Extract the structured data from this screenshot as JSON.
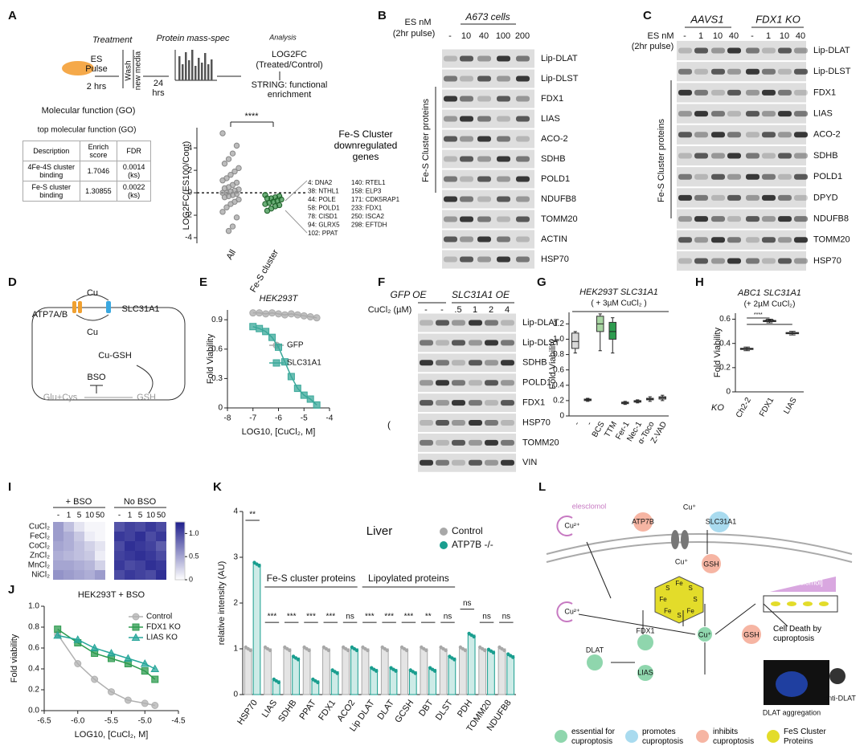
{
  "panels": {
    "A": {
      "letter": "A",
      "workflow": {
        "treatment": "Treatment",
        "es": "ES",
        "pulse": "Pulse",
        "hrs2": "2 hrs",
        "wash": "Wash",
        "new_media": "new media",
        "h24": "24",
        "hrs": "hrs",
        "massspec": "Protein mass-spec",
        "analysis": "Analysis",
        "log2fc": "LOG2FC",
        "ratio": "(Treated/Control)",
        "string1": "STRING: functional",
        "string2": "enrichment",
        "go": "Molecular function (GO)"
      },
      "table": {
        "title": "top molecular function (GO)",
        "header": [
          "Description",
          "Enrich score",
          "FDR"
        ],
        "rows": [
          [
            "4Fe-4S cluster binding",
            "1.7046",
            "0.0014 (ks)"
          ],
          [
            "Fe-S cluster binding",
            "1.30855",
            "0.0022 (ks)"
          ]
        ]
      },
      "plot": {
        "type": "strip",
        "ylabel": "LOG2FC(ES100/Cont)",
        "ylim": [
          -4.5,
          5.8
        ],
        "yticks": [
          -4,
          -2,
          0,
          2,
          4
        ],
        "categories": [
          "All",
          "Fe-S cluster"
        ],
        "groups": [
          {
            "color": "#a0a0a0",
            "values": [
              5.3,
              4.2,
              3.5,
              3.0,
              2.6,
              2.2,
              1.9,
              1.6,
              1.3,
              1.1,
              0.9,
              0.7,
              0.5,
              0.4,
              0.3,
              0.2,
              0.1,
              0,
              0,
              -0.1,
              -0.2,
              -0.3,
              -0.4,
              -0.6,
              -0.8,
              -1.0,
              -1.3,
              -1.7,
              -2.2,
              -3.0,
              -3.4
            ]
          },
          {
            "color": "#2e8b3e",
            "values": [
              -0.2,
              -0.3,
              -0.4,
              -0.5,
              -0.5,
              -0.6,
              -0.7,
              -0.8,
              -0.9,
              -1.0,
              -1.1,
              -1.2,
              -1.4,
              -1.6
            ]
          }
        ],
        "significance": "****",
        "genes_title": "Fe-S Cluster downregulated genes",
        "genes": [
          "4: DNA2",
          "38: NTHL1",
          "44: POLE",
          "58: POLD1",
          "78: CISD1",
          "94: GLRX5",
          "102: PPAT",
          "140: RTEL1",
          "158: ELP3",
          "171: CDK5RAP1",
          "233: FDX1",
          "250: ISCA2",
          "298: EFTDH"
        ]
      }
    },
    "B": {
      "letter": "B",
      "dose_label": "ES nM",
      "pulse": "(2hr pulse)",
      "cells": "A673 cells",
      "lanes": [
        "-",
        "10",
        "40",
        "100",
        "200"
      ],
      "rows": [
        "Lip-DLAT",
        "Lip-DLST",
        "FDX1",
        "LIAS",
        "ACO-2",
        "SDHB",
        "POLD1",
        "NDUFB8",
        "TOMM20",
        "ACTIN",
        "HSP70"
      ],
      "bracket": "Fe-S Cluster proteins"
    },
    "C": {
      "letter": "C",
      "dose_label": "ES nM",
      "pulse": "(2hr pulse)",
      "groups": [
        "AAVS1",
        "FDX1 KO"
      ],
      "lanes": [
        "-",
        "1",
        "10",
        "40",
        "-",
        "1",
        "10",
        "40"
      ],
      "rows": [
        "Lip-DLAT",
        "Lip-DLST",
        "FDX1",
        "LIAS",
        "ACO-2",
        "SDHB",
        "POLD1",
        "DPYD",
        "NDUFB8",
        "TOMM20",
        "HSP70"
      ],
      "bracket": "Fe-S Cluster proteins"
    },
    "D": {
      "letter": "D",
      "labels": {
        "atp7": "ATP7A/B",
        "cu_top": "Cu",
        "slc": "SLC31A1",
        "cu_bottom": "Cu",
        "cugsh": "Cu-GSH",
        "bso": "BSO",
        "glucys": "Glu+Cys",
        "gsh": "GSH"
      }
    },
    "E": {
      "letter": "E",
      "chart": {
        "type": "line",
        "title": "HEK293T",
        "xlabel": "LOG10, [CuCl₂, M]",
        "ylabel": "Fold Viability",
        "x": [
          -7,
          -6.75,
          -6.5,
          -6.25,
          -6,
          -5.75,
          -5.5,
          -5.25,
          -5,
          -4.75,
          -4.5
        ],
        "xlim": [
          -8,
          -4
        ],
        "xticks": [
          -8,
          -7,
          -6,
          -5,
          -4
        ],
        "ylim": [
          0,
          1
        ],
        "yticks": [
          0,
          0.3,
          0.6,
          0.9
        ],
        "series": [
          {
            "name": "GFP",
            "color": "#aaaaaa",
            "marker": "circle",
            "values": [
              0.97,
              0.97,
              0.96,
              0.97,
              0.96,
              0.95,
              0.96,
              0.95,
              0.94,
              0.93,
              0.92
            ]
          },
          {
            "name": "SLC31A1",
            "color": "#3aa89a",
            "marker": "square",
            "values": [
              0.83,
              0.81,
              0.78,
              0.72,
              0.62,
              0.47,
              0.32,
              0.2,
              0.13,
              0.09,
              0.03
            ]
          }
        ]
      }
    },
    "F": {
      "letter": "F",
      "groups": [
        "GFP OE",
        "SLC31A1 OE"
      ],
      "dose_label": "CuCl₂ (µM)",
      "lanes": [
        "-",
        "-",
        ".5",
        "1",
        "2",
        "4"
      ],
      "rows": [
        "Lip-DLAT",
        "Lip-DLST",
        "SDHB",
        "POLD1",
        "FDX1",
        "HSP70",
        "TOMM20",
        "VIN"
      ],
      "stray": "("
    },
    "G": {
      "letter": "G",
      "chart": {
        "type": "box",
        "title": "HEK293T SLC31A1",
        "subtitle": "( + 3µM CuCl₂ )",
        "ylabel": "Fold Viability",
        "categories": [
          "-",
          "-",
          "BCS",
          "TTM",
          "Fer-1",
          "Nec-1",
          "α-Toco",
          "Z-VAD"
        ],
        "ylim": [
          0,
          1.35
        ],
        "yticks": [
          0,
          0.2,
          0.4,
          0.6,
          0.8,
          {
            "value": 1,
            "label": "1.0"
          },
          1.2
        ],
        "colors": [
          "#d9d9d9",
          "#8a8a8a",
          "#a8d5a2",
          "#2e9b4f",
          "#8a8a8a",
          "#8a8a8a",
          "#8a8a8a",
          "#8a8a8a"
        ],
        "boxes": [
          {
            "min": 0.82,
            "q1": 0.88,
            "median": 0.97,
            "q3": 1.08,
            "max": 1.1
          },
          {
            "min": 0.19,
            "q1": 0.2,
            "median": 0.21,
            "q3": 0.22,
            "max": 0.23
          },
          {
            "min": 0.85,
            "q1": 1.1,
            "median": 1.2,
            "q3": 1.3,
            "max": 1.33
          },
          {
            "min": 0.82,
            "q1": 1.0,
            "median": 1.1,
            "q3": 1.22,
            "max": 1.28
          },
          {
            "min": 0.15,
            "q1": 0.16,
            "median": 0.17,
            "q3": 0.18,
            "max": 0.19
          },
          {
            "min": 0.17,
            "q1": 0.18,
            "median": 0.19,
            "q3": 0.2,
            "max": 0.21
          },
          {
            "min": 0.19,
            "q1": 0.21,
            "median": 0.22,
            "q3": 0.23,
            "max": 0.25
          },
          {
            "min": 0.2,
            "q1": 0.22,
            "median": 0.24,
            "q3": 0.25,
            "max": 0.27
          }
        ]
      }
    },
    "H": {
      "letter": "H",
      "chart": {
        "type": "box",
        "title": "ABC1 SLC31A1",
        "subtitle": "(+ 2µM CuCl₂)",
        "ylabel": "Fold Viability",
        "xlabel": "KO",
        "categories": [
          "Ch2-2",
          "FDX1",
          "LIAS"
        ],
        "ylim": [
          0,
          0.65
        ],
        "yticks": [
          0,
          0.2,
          0.4,
          0.6
        ],
        "colors": [
          "#ffffff",
          "#ffffff",
          "#ffffff"
        ],
        "boxes": [
          {
            "min": 0.34,
            "q1": 0.35,
            "median": 0.355,
            "q3": 0.36,
            "max": 0.37
          },
          {
            "min": 0.57,
            "q1": 0.58,
            "median": 0.585,
            "q3": 0.59,
            "max": 0.6
          },
          {
            "min": 0.47,
            "q1": 0.48,
            "median": 0.485,
            "q3": 0.49,
            "max": 0.5
          }
        ],
        "significance": [
          "****",
          "****"
        ]
      }
    },
    "I": {
      "letter": "I",
      "conditions": [
        "+ BSO",
        "No BSO"
      ],
      "columns": [
        "-",
        "1",
        "5",
        "10",
        "50"
      ],
      "rows": [
        "CuCl₂",
        "FeCl₂",
        "CoCl₂",
        "ZnCl₂",
        "MnCl₂",
        "NiCl₂"
      ],
      "clim": [
        0,
        1.25
      ],
      "cticks": [
        0,
        0.5,
        {
          "value": 1,
          "label": "1.0"
        }
      ],
      "matrices": [
        [
          [
            0.55,
            0.35,
            0.15,
            0.05,
            0.05
          ],
          [
            0.55,
            0.45,
            0.3,
            0.1,
            0.05
          ],
          [
            0.5,
            0.45,
            0.35,
            0.25,
            0.15
          ],
          [
            0.45,
            0.4,
            0.35,
            0.3,
            0.1
          ],
          [
            0.5,
            0.5,
            0.45,
            0.4,
            0.25
          ],
          [
            0.6,
            0.55,
            0.5,
            0.45,
            0.55
          ]
        ],
        [
          [
            0.95,
            1.05,
            1.0,
            1.1,
            1.0
          ],
          [
            1.1,
            1.05,
            1.15,
            1.0,
            1.1
          ],
          [
            1.0,
            1.15,
            1.1,
            1.05,
            0.9
          ],
          [
            1.05,
            1.1,
            1.15,
            1.1,
            1.0
          ],
          [
            1.1,
            1.0,
            1.05,
            1.15,
            1.1
          ],
          [
            1.0,
            1.1,
            1.05,
            1.0,
            1.15
          ]
        ]
      ]
    },
    "J": {
      "letter": "J",
      "chart": {
        "type": "line",
        "title": "HEK293T + BSO",
        "xlabel": "LOG10, [CuCl₂, M]",
        "ylabel": "Fold viability",
        "x": [
          -6.3,
          -6.0,
          -5.75,
          -5.5,
          -5.25,
          -5.0,
          -4.85
        ],
        "xlim": [
          -6.5,
          -4.5
        ],
        "xticks": [
          -6.5,
          {
            "value": -6,
            "label": "-6.0"
          },
          -5.5,
          {
            "value": -5,
            "label": "-5.0"
          },
          -4.5
        ],
        "ylim": [
          0,
          1
        ],
        "yticks": [
          {
            "value": 0,
            "label": "0.0"
          },
          0.2,
          0.4,
          0.6,
          0.8,
          {
            "value": 1,
            "label": "1.0"
          }
        ],
        "series": [
          {
            "name": "Control",
            "color": "#b0b0b0",
            "marker": "circle",
            "values": [
              0.73,
              0.45,
              0.3,
              0.18,
              0.1,
              0.07,
              0.05
            ]
          },
          {
            "name": "FDX1 KO",
            "color": "#2e9b4f",
            "marker": "square",
            "values": [
              0.78,
              0.65,
              0.55,
              0.5,
              0.45,
              0.38,
              0.3
            ]
          },
          {
            "name": "LIAS KO",
            "color": "#26a69a",
            "marker": "triangle",
            "values": [
              0.72,
              0.68,
              0.6,
              0.55,
              0.5,
              0.45,
              0.4
            ]
          }
        ]
      }
    },
    "K": {
      "letter": "K",
      "chart": {
        "type": "bar",
        "title": "Liver",
        "ylabel": "relative intensity (AU)",
        "ylim": [
          0,
          4
        ],
        "yticks": [
          0,
          1,
          2,
          3,
          4
        ],
        "categories": [
          "HSP70",
          "LIAS",
          "SDHB",
          "PPAT",
          "FDX1",
          "ACO2",
          "Lip DLAT",
          "DLAT",
          "GCSH",
          "DBT",
          "DLST",
          "PDH",
          "TOMM20",
          "NDUFB8"
        ],
        "series": [
          {
            "name": "Control",
            "color": "#a8a8a8",
            "values": [
              1.0,
              1.0,
              1.0,
              1.0,
              1.0,
              1.0,
              1.0,
              1.0,
              1.0,
              1.0,
              1.0,
              1.0,
              1.0,
              1.0
            ]
          },
          {
            "name": "ATP7B -/-",
            "color": "#1a9e8f",
            "values": [
              2.85,
              0.3,
              0.8,
              0.3,
              0.5,
              1.0,
              0.55,
              0.55,
              0.5,
              0.55,
              0.8,
              1.3,
              0.95,
              0.85
            ]
          }
        ],
        "significance": [
          "**",
          "***",
          "***",
          "***",
          "***",
          "ns",
          "***",
          "***",
          "***",
          "**",
          "ns",
          "ns",
          "ns",
          "ns"
        ],
        "group_labels": [
          "Fe-S cluster proteins",
          "Lipoylated proteins"
        ]
      }
    },
    "L": {
      "letter": "L",
      "labels": {
        "elesclomol": "elesclomol",
        "cu2_top": "Cu²⁺",
        "atp7b": "ATP7B",
        "cu1_channel": "Cu⁺",
        "slc": "SLC31A1",
        "cu1_in": "Cu⁺",
        "gsh_top": "GSH",
        "gradient": "[elesclomol]",
        "cu2_mid": "Cu²⁺",
        "cu1_mid": "Cu⁺",
        "gsh_mid": "GSH",
        "fdx1": "FDX1",
        "dlat": "DLAT",
        "lias": "LIAS",
        "death": "Cell Death by cuproptosis",
        "anti": "anti-DLAT",
        "aggregation": "DLAT aggregation"
      },
      "cluster_atoms": [
        "S",
        "Fe",
        "S",
        "Fe",
        "Fe",
        "S",
        "Fe",
        "S"
      ],
      "legend": [
        {
          "label": "essential for cuproptosis",
          "color": "#8fd6ad"
        },
        {
          "label": "promotes cuproptosis",
          "color": "#a9dbef"
        },
        {
          "label": "inhibits cuproptosis",
          "color": "#f6b5a3"
        },
        {
          "label": "FeS Cluster Proteins",
          "color": "#e3dc2a"
        }
      ]
    }
  }
}
